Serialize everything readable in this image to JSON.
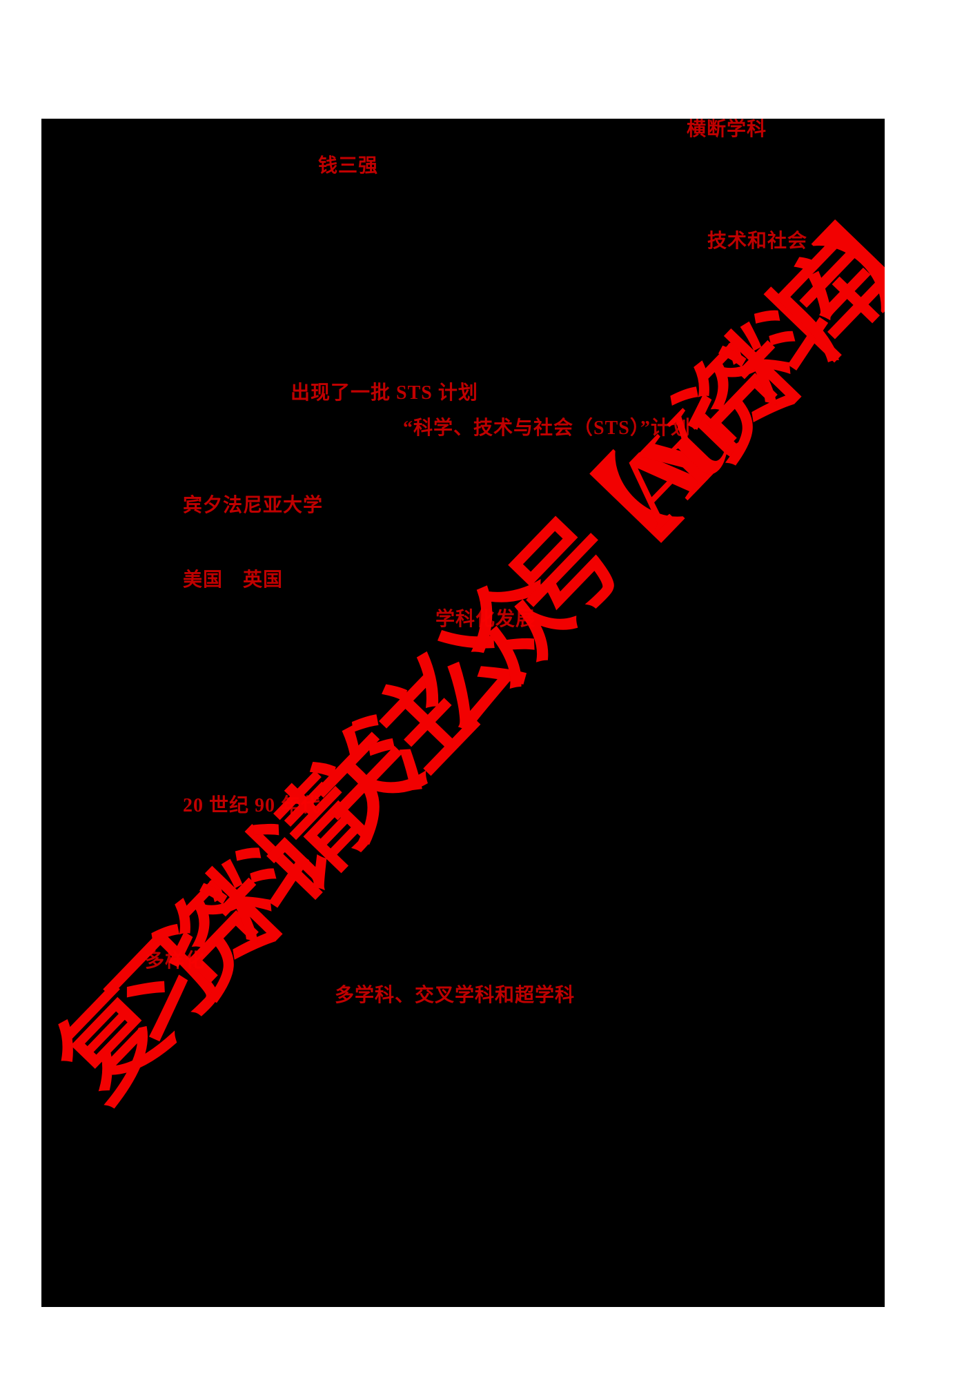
{
  "page": {
    "background_color": "#000000",
    "margin_color": "#ffffff"
  },
  "colors": {
    "answer_text": "#c00000",
    "watermark_text": "#fa0202"
  },
  "answers": [
    {
      "text": "横断学科"
    },
    {
      "text": "钱三强"
    },
    {
      "text": "技术和社会"
    },
    {
      "text": "出现了一批 STS 计划"
    },
    {
      "text": "“科学、技术与社会（STS）”计划"
    },
    {
      "text": "宾夕法尼亚大学"
    },
    {
      "text": "美国　英国"
    },
    {
      "text": "学科化发展"
    },
    {
      "text": "20 世纪 90 年代"
    },
    {
      "text": "多样化"
    },
    {
      "text": "多学科、交叉学科和超学科"
    }
  ],
  "watermark": {
    "text": "复习资料请关注公众号【AYu资料库】"
  }
}
